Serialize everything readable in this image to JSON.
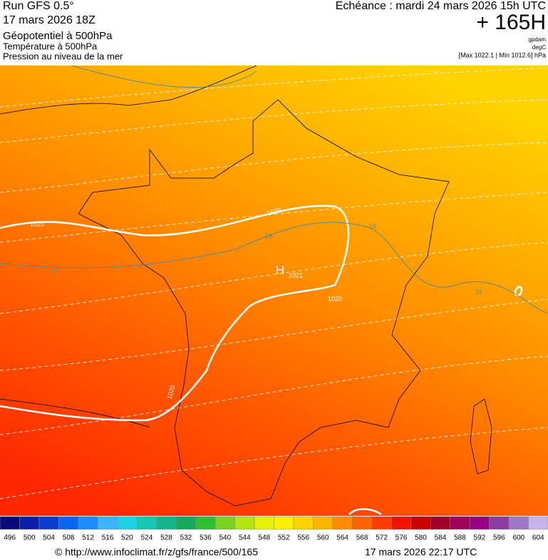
{
  "header": {
    "run": "Run GFS 0.5°",
    "run_date": "17 mars 2026 18Z",
    "title": "Géopotentiel à 500hPa",
    "subtitle1": "Température à 500hPa",
    "subtitle2": "Pression au niveau de la mer",
    "valid": "Echéance : mardi 24 mars 2026 15h UTC",
    "lead": "+ 165H",
    "unit1": "gpdam",
    "unit2": "degC",
    "range": "[Max 1022.1 | Min 1012.6] hPa"
  },
  "map": {
    "isobar_labels": [
      "1020",
      "1020",
      "1020",
      "1020"
    ],
    "isotherm_labels": [
      "16",
      "16",
      "16",
      "16"
    ],
    "high": "H",
    "high_value": "1021"
  },
  "scale": {
    "values": [
      496,
      500,
      504,
      508,
      512,
      516,
      520,
      524,
      528,
      532,
      536,
      540,
      544,
      548,
      552,
      556,
      560,
      564,
      568,
      572,
      576,
      580,
      584,
      588,
      592,
      596,
      600,
      604
    ],
    "colors": [
      "#0a0a78",
      "#0a1eaa",
      "#0a3cd2",
      "#0a64f0",
      "#1e8cff",
      "#3cb4ff",
      "#1ed2e6",
      "#14c8b4",
      "#14b48c",
      "#14aa5a",
      "#32be32",
      "#78d21e",
      "#b4e614",
      "#e6f00a",
      "#fff000",
      "#ffd200",
      "#ffb400",
      "#ff8c00",
      "#ff6400",
      "#ff3c00",
      "#f01400",
      "#c80000",
      "#a00028",
      "#a0005a",
      "#960082",
      "#8c3ca0",
      "#a078c8",
      "#c8b4e6"
    ]
  },
  "footer": {
    "url": "© http://www.infoclimat.fr/z/gfs/france/500/165",
    "timestamp": "17 mars 2026 22:17 UTC"
  }
}
